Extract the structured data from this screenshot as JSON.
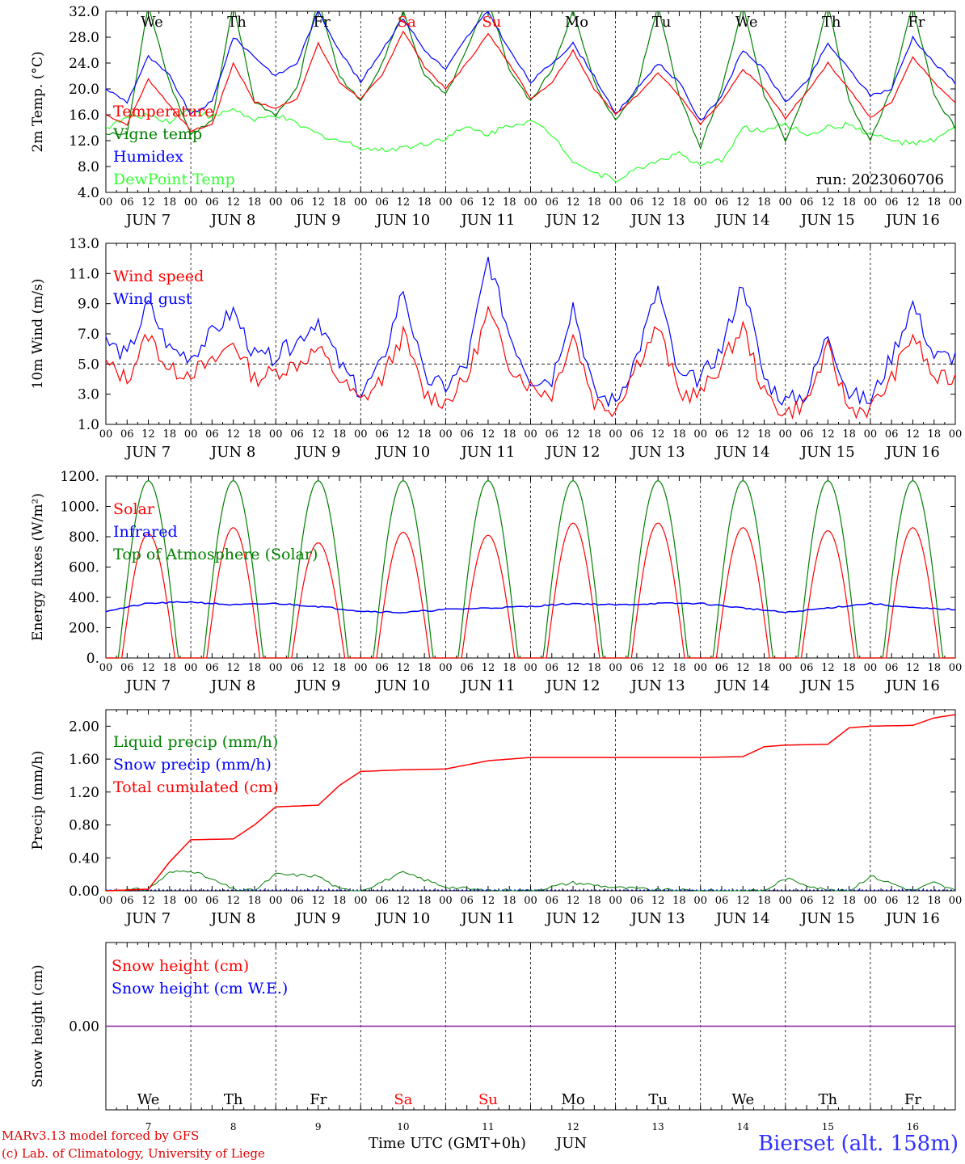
{
  "run_label": "run: 2023060706",
  "x_axis_title": "Time UTC (GMT+0h)",
  "month_label": "JUN",
  "footer": {
    "credit_line1": "MARv3.13 model forced by GFS",
    "credit_line2": "(c) Lab. of Climatology, University of Liege",
    "station": "Bierset (alt. 158m)"
  },
  "days": [
    {
      "dow": "We",
      "date": "7",
      "weekend": false
    },
    {
      "dow": "Th",
      "date": "8",
      "weekend": false
    },
    {
      "dow": "Fr",
      "date": "9",
      "weekend": false
    },
    {
      "dow": "Sa",
      "date": "10",
      "weekend": true
    },
    {
      "dow": "Su",
      "date": "11",
      "weekend": true
    },
    {
      "dow": "Mo",
      "date": "12",
      "weekend": false
    },
    {
      "dow": "Tu",
      "date": "13",
      "weekend": false
    },
    {
      "dow": "We",
      "date": "14",
      "weekend": false
    },
    {
      "dow": "Th",
      "date": "15",
      "weekend": false
    },
    {
      "dow": "Fr",
      "date": "16",
      "weekend": false
    }
  ],
  "hour_ticks": [
    "00",
    "06",
    "12",
    "18"
  ],
  "end_tick": "00",
  "colors": {
    "red": "#ff0000",
    "green": "#008000",
    "blue": "#0000ff",
    "lightgreen": "#33ff33",
    "purple": "#8020a0",
    "weekend": "#ff0000"
  },
  "chart_data": [
    {
      "type": "line",
      "ylabel": "2m Temp. (°C)",
      "ylim": [
        4,
        32
      ],
      "yticks": [
        "4.0",
        "8.0",
        "12.0",
        "16.0",
        "20.0",
        "24.0",
        "28.0",
        "32.0"
      ],
      "x_hours": [
        0,
        6,
        12,
        18,
        24,
        30,
        36,
        42,
        48,
        54,
        60,
        66,
        72,
        78,
        84,
        90,
        96,
        102,
        108,
        114,
        120,
        126,
        132,
        138,
        144,
        150,
        156,
        162,
        168,
        174,
        180,
        186,
        192,
        198,
        204,
        210,
        216,
        222,
        228,
        234,
        240
      ],
      "series": [
        {
          "name": "Temperature",
          "color": "red",
          "values": [
            16,
            14.5,
            21.5,
            17.5,
            13.5,
            14.5,
            24,
            18,
            17,
            18.5,
            27,
            21,
            18.5,
            22,
            29,
            23.5,
            20,
            24,
            28.5,
            24,
            18.5,
            21,
            26,
            20,
            16,
            19,
            22.5,
            19,
            14.5,
            18,
            23,
            20,
            15.5,
            19.5,
            24,
            20,
            15.5,
            18,
            25,
            21,
            18
          ]
        },
        {
          "name": "Vigne temp",
          "color": "green",
          "values": [
            13,
            13,
            33,
            21,
            13,
            15,
            33,
            18,
            16,
            20,
            34,
            22,
            18,
            24,
            32,
            22,
            19,
            26,
            34,
            23,
            18,
            23,
            32,
            21,
            15,
            20,
            33,
            19,
            11,
            20,
            33,
            19,
            12,
            20,
            33,
            18,
            12,
            20,
            33,
            19,
            14
          ]
        },
        {
          "name": "Humidex",
          "color": "blue",
          "values": [
            20,
            18,
            25,
            22,
            16,
            18,
            28,
            25,
            22,
            24,
            32,
            26,
            21,
            26,
            31,
            26,
            23,
            28,
            32,
            26,
            21,
            24,
            27,
            22,
            16,
            20,
            24,
            21,
            15,
            19,
            26,
            23,
            18,
            21,
            27,
            23,
            19,
            20,
            28,
            24,
            21
          ]
        },
        {
          "name": "DewPoint Temp",
          "color": "lightgreen",
          "values": [
            14,
            15.5,
            16,
            15,
            17,
            15.5,
            17,
            15,
            16,
            14.5,
            13,
            12,
            11,
            10.5,
            11,
            11.5,
            12.5,
            14,
            13,
            14.5,
            15,
            13,
            9,
            7,
            6,
            7.5,
            9,
            10,
            8,
            9,
            14,
            13.5,
            14.5,
            13,
            14,
            14.5,
            13,
            12,
            11.5,
            12,
            14
          ]
        }
      ]
    },
    {
      "type": "line",
      "ylabel": "10m Wind (m/s)",
      "ylim": [
        1,
        13
      ],
      "yticks": [
        "1.0",
        "3.0",
        "5.0",
        "7.0",
        "9.0",
        "11.0",
        "13.0"
      ],
      "reference_line": 5,
      "x_hours": [
        0,
        6,
        12,
        18,
        24,
        30,
        36,
        42,
        48,
        54,
        60,
        66,
        72,
        78,
        84,
        90,
        96,
        102,
        108,
        114,
        120,
        126,
        132,
        138,
        144,
        150,
        156,
        162,
        168,
        174,
        180,
        186,
        192,
        198,
        204,
        210,
        216,
        222,
        228,
        234,
        240
      ],
      "series": [
        {
          "name": "Wind speed",
          "color": "red",
          "values": [
            5,
            4,
            7,
            4.5,
            4.5,
            5,
            6.5,
            4,
            4.5,
            5,
            6,
            4,
            2.5,
            4,
            7,
            3,
            2.5,
            4,
            8.5,
            5,
            3.5,
            3,
            7,
            2.5,
            2,
            5,
            7.5,
            3,
            3,
            5,
            7.5,
            3,
            1.7,
            2.5,
            6,
            2,
            2,
            4,
            7,
            4,
            4
          ]
        },
        {
          "name": "Wind gust",
          "color": "blue",
          "values": [
            6.5,
            5.5,
            9,
            6,
            5.5,
            7,
            8.5,
            5.5,
            5.5,
            6.5,
            8,
            5,
            3,
            5,
            10,
            4,
            3.5,
            5,
            12,
            7,
            4,
            4,
            9,
            3,
            2.5,
            5.5,
            10,
            4,
            4,
            6,
            10.5,
            4,
            2.5,
            3,
            7,
            3,
            2.5,
            5.5,
            9,
            5.5,
            5.5
          ]
        }
      ]
    },
    {
      "type": "line",
      "ylabel": "Energy fluxes (W/m²)",
      "ylim": [
        0,
        1200
      ],
      "yticks": [
        "0.",
        "200.",
        "400.",
        "600.",
        "800.",
        "1000.",
        "1200."
      ],
      "days_peak": {
        "Solar": [
          820,
          860,
          760,
          830,
          810,
          890,
          890,
          860,
          840,
          860
        ],
        "Top of Atmosphere (Solar)": [
          1170,
          1170,
          1170,
          1170,
          1170,
          1170,
          1170,
          1170,
          1170,
          1170
        ]
      },
      "series": [
        {
          "name": "Solar",
          "color": "red"
        },
        {
          "name": "Infrared",
          "color": "blue",
          "values": [
            310,
            360,
            370,
            350,
            360,
            340,
            310,
            300,
            320,
            330,
            340,
            360,
            350,
            360,
            360,
            330,
            300,
            330,
            360,
            330,
            320
          ]
        },
        {
          "name": "Top of Atmosphere (Solar)",
          "color": "green"
        }
      ]
    },
    {
      "type": "line",
      "ylabel": "Precip (mm/h)",
      "ylim": [
        0,
        2.2
      ],
      "yticks": [
        "0.00",
        "0.40",
        "0.80",
        "1.20",
        "1.60",
        "2.00"
      ],
      "x_hours": [
        0,
        12,
        18,
        24,
        36,
        42,
        48,
        60,
        66,
        72,
        84,
        96,
        108,
        114,
        120,
        132,
        144,
        156,
        168,
        180,
        186,
        192,
        204,
        210,
        216,
        228,
        234,
        240
      ],
      "series": [
        {
          "name": "Liquid precip (mm/h)",
          "color": "green",
          "values": [
            0,
            0.02,
            0.22,
            0.25,
            0.02,
            0,
            0.2,
            0.18,
            0.02,
            0,
            0.22,
            0.05,
            0,
            0.01,
            0,
            0.1,
            0.04,
            0.01,
            0,
            0,
            0,
            0.15,
            0,
            0,
            0.18,
            0,
            0.1,
            0
          ]
        },
        {
          "name": "Snow precip (mm/h)",
          "color": "blue",
          "values": []
        },
        {
          "name": "Total cumulated (cm)",
          "color": "red",
          "values": [
            0,
            0.02,
            0.35,
            0.62,
            0.63,
            0.8,
            1.02,
            1.04,
            1.28,
            1.45,
            1.47,
            1.48,
            1.58,
            1.6,
            1.62,
            1.62,
            1.62,
            1.62,
            1.62,
            1.63,
            1.75,
            1.77,
            1.78,
            1.98,
            2.0,
            2.01,
            2.1,
            2.14
          ]
        }
      ]
    },
    {
      "type": "line",
      "ylabel": "Snow height (cm)",
      "ylim": [
        -1,
        1
      ],
      "yticks": [
        "0.00"
      ],
      "series": [
        {
          "name": "Snow height (cm)",
          "color": "red",
          "values": [
            0,
            0
          ]
        },
        {
          "name": "Snow height (cm W.E.)",
          "color": "blue",
          "values": [
            0,
            0
          ]
        }
      ]
    }
  ]
}
